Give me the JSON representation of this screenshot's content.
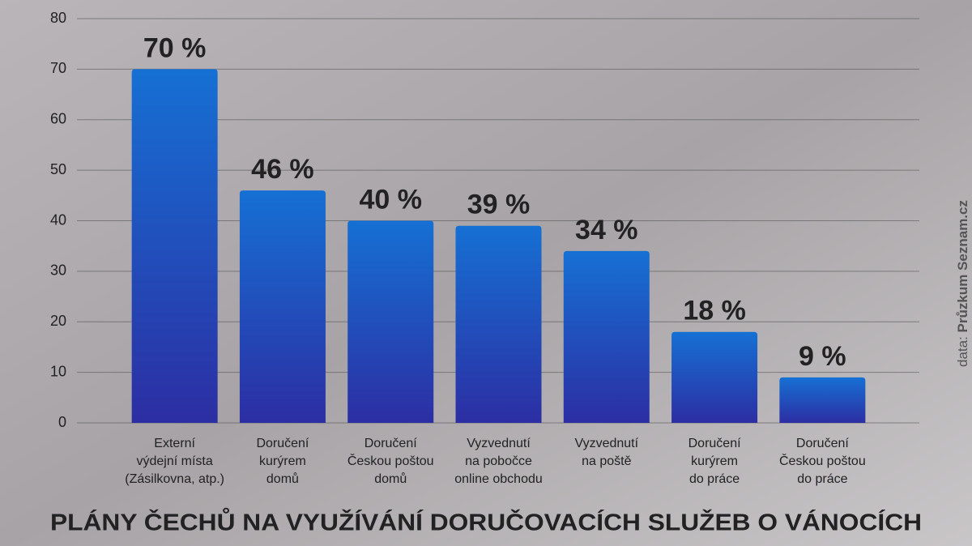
{
  "chart_data": {
    "type": "bar",
    "title": "PLÁNY ČECHŮ NA VYUŽÍVÁNÍ DORUČOVACÍCH SLUŽEB O VÁNOCÍCH",
    "source_prefix": "data:",
    "source": "Průzkum Seznam.cz",
    "categories": [
      [
        "Externí",
        "výdejní místa",
        "(Zásilkovna, atp.)"
      ],
      [
        "Doručení",
        "kurýrem",
        "domů"
      ],
      [
        "Doručení",
        "Českou poštou",
        "domů"
      ],
      [
        "Vyzvednutí",
        "na pobočce",
        "online obchodu"
      ],
      [
        "Vyzvednutí",
        "na poště"
      ],
      [
        "Doručení",
        "kurýrem",
        "do práce"
      ],
      [
        "Doručení",
        "Českou poštou",
        "do práce"
      ]
    ],
    "values": [
      70,
      46,
      40,
      39,
      34,
      18,
      9
    ],
    "value_labels": [
      "70 %",
      "46 %",
      "40 %",
      "39 %",
      "34 %",
      "18 %",
      "9 %"
    ],
    "color": "#1f5fcb",
    "ylim": [
      0,
      80
    ],
    "yticks": [
      0,
      10,
      20,
      30,
      40,
      50,
      60,
      70,
      80
    ],
    "grid": true
  }
}
